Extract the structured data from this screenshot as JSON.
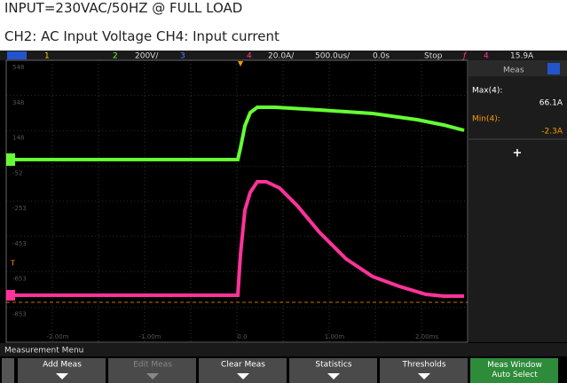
{
  "caption": {
    "line1": "INPUT=230VAC/50HZ @ FULL LOAD",
    "line2": "CH2: AC Input Voltage CH4: Input current"
  },
  "status_bar": {
    "ch1": "1",
    "ch2": "2",
    "ch2_scale": "200V/",
    "ch3": "3",
    "ch4": "4",
    "ch4_scale": "20.0A/",
    "timebase": "500.0us/",
    "delay": "0.0s",
    "run_state": "Stop",
    "trigger_ch": "4",
    "trigger_level": "15.9A"
  },
  "y_labels": [
    "548",
    "348",
    "148",
    "-52",
    "-253",
    "-453",
    "-653",
    "-853"
  ],
  "x_labels": [
    "-2.00m",
    "-1.00m",
    "0.0",
    "1.00m",
    "2.00ms"
  ],
  "panel": {
    "title": "Meas",
    "max_label": "Max(4):",
    "max_value": "66.1A",
    "min_label": "Min(4):",
    "min_value": "-2.3A",
    "add": "+"
  },
  "menu": {
    "title": "Measurement Menu",
    "buttons": [
      "Add Meas",
      "Edit Meas",
      "Clear Meas",
      "Statistics",
      "Thresholds",
      "Meas Window Auto Select"
    ]
  }
}
